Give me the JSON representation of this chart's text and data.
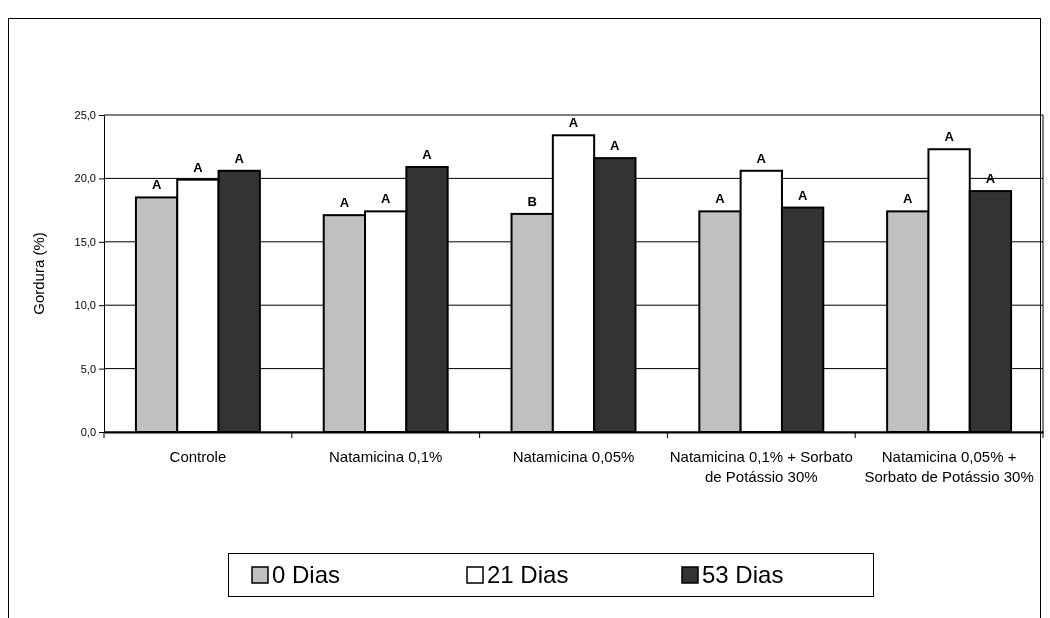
{
  "chart_data": {
    "type": "bar",
    "ylabel": "Gordura (%)",
    "categories": [
      "Controle",
      "Natamicina 0,1%",
      "Natamicina 0,05%",
      "Natamicina 0,1% + Sorbato de Potássio 30%",
      "Natamicina 0,05% + Sorbato de Potássio 30%"
    ],
    "series": [
      {
        "name": "0 Dias",
        "color": "#c0c0c0",
        "values": [
          18.5,
          17.1,
          17.2,
          17.4,
          17.4
        ],
        "value_labels": [
          "A",
          "A",
          "B",
          "A",
          "A"
        ]
      },
      {
        "name": "21 Dias",
        "color": "#ffffff",
        "values": [
          19.9,
          17.4,
          23.4,
          20.6,
          22.3
        ],
        "value_labels": [
          "A",
          "A",
          "A",
          "A",
          "A"
        ]
      },
      {
        "name": "53 Dias",
        "color": "#333333",
        "values": [
          20.6,
          20.9,
          21.6,
          17.7,
          19.0
        ],
        "value_labels": [
          "A",
          "A",
          "A",
          "A",
          "A"
        ]
      }
    ],
    "ylim": [
      0,
      25
    ],
    "yticks": [
      {
        "value": 0,
        "label": "0,0"
      },
      {
        "value": 5,
        "label": "5,0"
      },
      {
        "value": 10,
        "label": "10,0"
      },
      {
        "value": 15,
        "label": "15,0"
      },
      {
        "value": 20,
        "label": "20,0"
      },
      {
        "value": 25,
        "label": "25,0"
      }
    ],
    "grid": "y",
    "legend": "bottom"
  }
}
